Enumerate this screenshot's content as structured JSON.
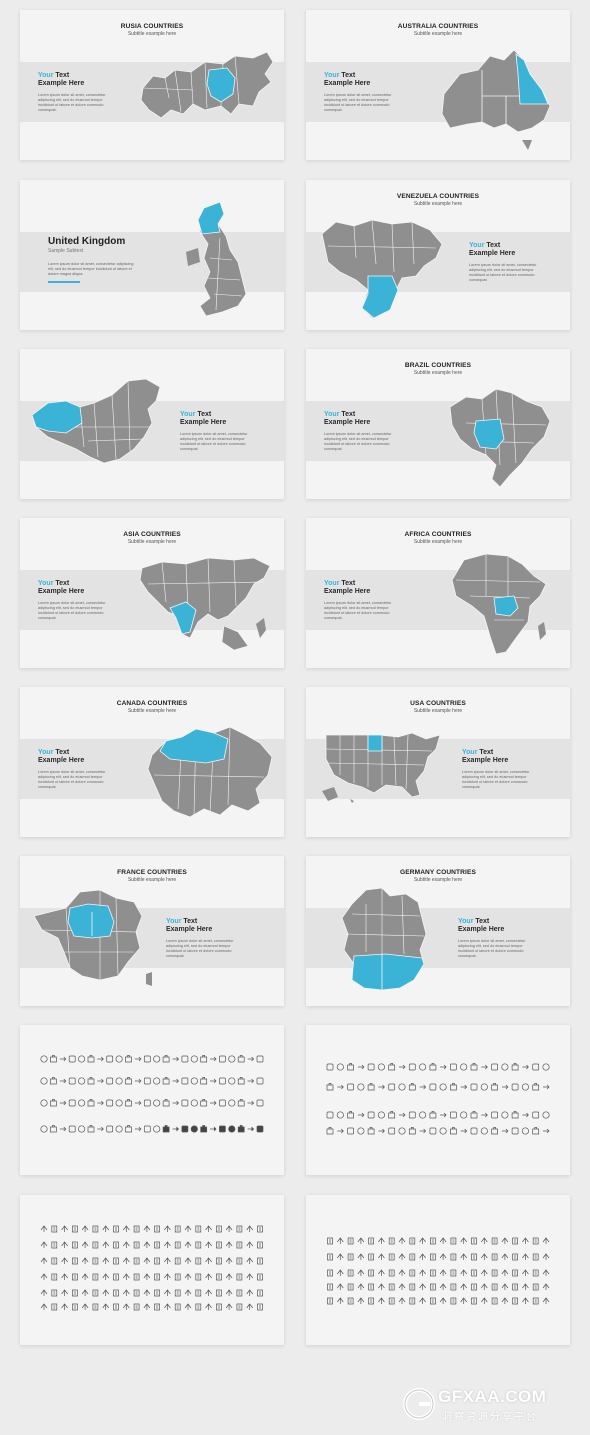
{
  "colors": {
    "accent": "#3bb3d6",
    "map_gray": "#8f8f8f",
    "band": "#e3e3e3",
    "slide_bg": "#f4f4f4"
  },
  "text_block": {
    "line1_accent": "Your",
    "line1_rest": " Text",
    "line2": "Example Here",
    "body": "Lorem ipsum dolor sit amet, consectetur adipiscing elit, sed do eiusmod tempor incididunt ut labore et dolore commodo consequat."
  },
  "subtitle": "Subtitle example here",
  "slides": {
    "russia": {
      "title": "RUSIA COUNTRIES"
    },
    "australia": {
      "title": "AUSTRALIA COUNTRIES"
    },
    "uk": {
      "title": "United Kingdom",
      "subtitle": "Sample Subtext",
      "body": "Lorem ipsum dolor sit amet, consectetur adipiscing elit, sed do eiusmod tempor incididunt ut labore et dolore magna aliqua."
    },
    "venezuela": {
      "title": "VENEZUELA COUNTRIES"
    },
    "china": {
      "title": ""
    },
    "brazil": {
      "title": "BRAZIL COUNTRIES"
    },
    "asia": {
      "title": "ASIA COUNTRIES"
    },
    "africa": {
      "title": "AFRICA COUNTRIES"
    },
    "canada": {
      "title": "CANADA COUNTRIES"
    },
    "usa": {
      "title": "USA COUNTRIES"
    },
    "france": {
      "title": "FRANCE COUNTRIES"
    },
    "germany": {
      "title": "GERMANY COUNTRIES"
    }
  },
  "watermark": {
    "text": "GFXAA.COM",
    "subtext": "洞察资源分享平台"
  }
}
